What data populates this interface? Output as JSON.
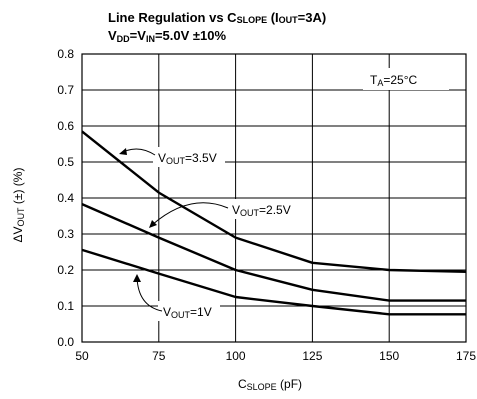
{
  "title": {
    "line1": {
      "main": "Line Regulation vs C",
      "sub1": "SLOPE",
      "mid": " (I",
      "sub2": "OUT",
      "end": "=3A)"
    },
    "line2": {
      "v1": "V",
      "sub1": "DD",
      "eq": "=V",
      "sub2": "IN",
      "end": "=5.0V ±10%"
    }
  },
  "chart_data": {
    "type": "line",
    "x": [
      50,
      75,
      100,
      125,
      150,
      175
    ],
    "xlim": [
      50,
      175
    ],
    "ylim": [
      0,
      0.8
    ],
    "grid": true,
    "xticks": [
      "50",
      "75",
      "100",
      "125",
      "150",
      "175"
    ],
    "yticks": [
      "0.0",
      "0.1",
      "0.2",
      "0.3",
      "0.4",
      "0.5",
      "0.6",
      "0.7",
      "0.8"
    ],
    "xlabel": {
      "main": "C",
      "sub": "SLOPE",
      "unit": " (pF)"
    },
    "ylabel": {
      "pre": "ΔV",
      "sub": "OUT",
      "post": " (±) (%)"
    },
    "annotation": {
      "main": "T",
      "sub": "A",
      "end": "=25°C"
    },
    "series": [
      {
        "name": "VOUT=3.5V",
        "label": {
          "pre": "V",
          "sub": "OUT",
          "end": "=3.5V"
        },
        "values": [
          0.585,
          0.415,
          0.29,
          0.22,
          0.2,
          0.195
        ]
      },
      {
        "name": "VOUT=2.5V",
        "label": {
          "pre": "V",
          "sub": "OUT",
          "end": "=2.5V"
        },
        "values": [
          0.383,
          0.29,
          0.2,
          0.145,
          0.115,
          0.115
        ]
      },
      {
        "name": "VOUT=1V",
        "label": {
          "pre": "V",
          "sub": "OUT",
          "end": "=1V"
        },
        "values": [
          0.256,
          0.19,
          0.125,
          0.1,
          0.077,
          0.077
        ]
      }
    ]
  }
}
